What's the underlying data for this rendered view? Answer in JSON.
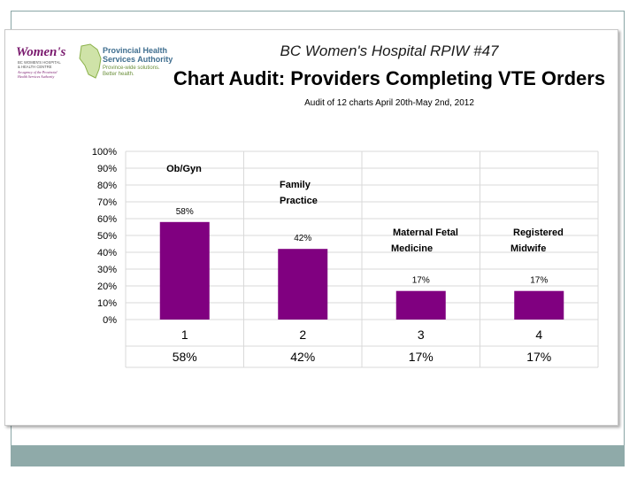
{
  "header": {
    "subtitle": "BC Women's Hospital RPIW #47",
    "title": "Chart Audit: Providers Completing VTE Orders",
    "note": "Audit of 12 charts April 20th-May 2nd, 2012"
  },
  "logos": {
    "womens_name": "Women's",
    "womens_line1": "BC WOMEN'S HOSPITAL",
    "womens_line2": "& HEALTH CENTRE",
    "womens_line3": "An agency of the Provincial",
    "womens_line4": "Health Services Authority",
    "phsa_line1": "Provincial Health",
    "phsa_line2": "Services Authority",
    "phsa_line3": "Province-wide solutions.",
    "phsa_line4": "Better health."
  },
  "colors": {
    "bar": "#800080",
    "grid": "#d9d9d9",
    "footer": "#8faaa9"
  },
  "chart_data": {
    "type": "bar",
    "categories": [
      "1",
      "2",
      "3",
      "4"
    ],
    "values": [
      58,
      42,
      17,
      17
    ],
    "data_labels": [
      "58%",
      "42%",
      "17%",
      "17%"
    ],
    "table_row": [
      "58%",
      "42%",
      "17%",
      "17%"
    ],
    "annotations": [
      [
        "Ob/Gyn"
      ],
      [
        "Family",
        "Practice"
      ],
      [
        "Maternal Fetal",
        "Medicine"
      ],
      [
        "Registered",
        "Midwife"
      ]
    ],
    "y_ticks": [
      "0%",
      "10%",
      "20%",
      "30%",
      "40%",
      "50%",
      "60%",
      "70%",
      "80%",
      "90%",
      "100%"
    ],
    "ylim": [
      0,
      100
    ],
    "grid": true,
    "title": "Chart Audit: Providers Completing VTE Orders"
  }
}
